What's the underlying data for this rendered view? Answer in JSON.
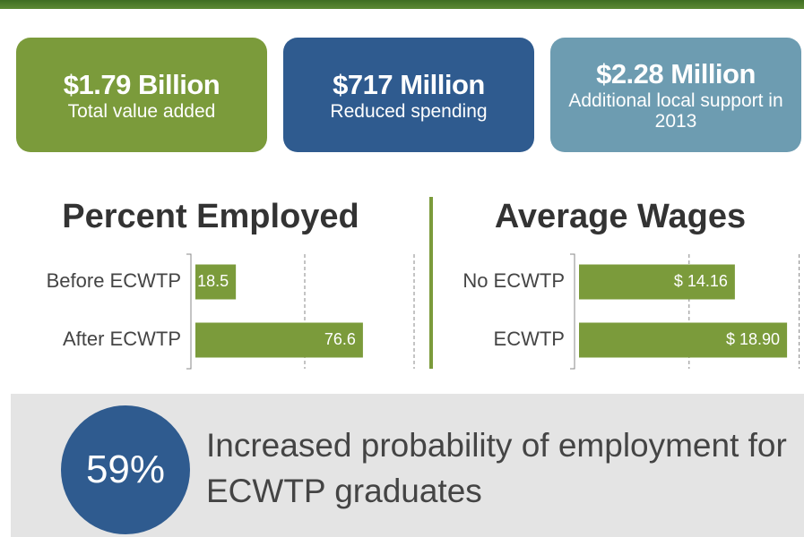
{
  "cards": [
    {
      "title": "$1.79 Billion",
      "subtitle": "Total value added",
      "color": "#7b9b3b"
    },
    {
      "title": "$717 Million",
      "subtitle": "Reduced spending",
      "color": "#2f5b8f"
    },
    {
      "title": "$2.28 Million",
      "subtitle": "Additional local support in 2013",
      "color": "#6d9cb1"
    }
  ],
  "chart_data": [
    {
      "type": "bar",
      "orientation": "horizontal",
      "title": "Percent Employed",
      "categories": [
        "Before ECWTP",
        "After ECWTP"
      ],
      "values": [
        18.5,
        76.6
      ],
      "color": "#7b9b3b",
      "xlim": [
        0,
        100
      ],
      "xticks": [
        50,
        100
      ],
      "grid": true
    },
    {
      "type": "bar",
      "orientation": "horizontal",
      "title": "Average Wages",
      "categories": [
        "No ECWTP",
        "ECWTP"
      ],
      "values": [
        14.16,
        18.9
      ],
      "value_labels": [
        "$ 14.16",
        "$ 18.90"
      ],
      "color": "#7b9b3b",
      "xlim": [
        0,
        20
      ],
      "xticks": [
        10,
        20
      ],
      "grid": true
    }
  ],
  "callout": {
    "value": "59%",
    "text": "Increased probability of employment for ECWTP graduates"
  }
}
